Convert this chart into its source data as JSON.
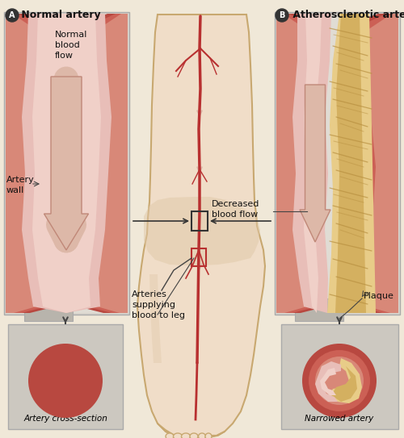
{
  "bg_color": "#f0e8d8",
  "title_a": " Normal artery",
  "title_b": " Atherosclerotic artery",
  "label_normal_flow": "Normal\nblood\nflow",
  "label_artery_wall": "Artery\nwall",
  "label_decreased_flow": "Decreased\nblood flow",
  "label_arteries": "Arteries\nsupplying\nblood to leg",
  "label_plaque": "Plaque",
  "label_cross_section_a": "Artery cross-section",
  "label_narrowed": "Narrowed artery",
  "color_artery_outer": "#b84840",
  "color_artery_mid": "#cc6055",
  "color_artery_inner": "#d88878",
  "color_artery_lumen": "#e8beb8",
  "color_artery_highlight": "#f0d0c8",
  "color_plaque": "#d4b060",
  "color_plaque_light": "#e8cc88",
  "color_plaque_dark": "#b89040",
  "color_skin": "#f0ddc8",
  "color_skin_dark": "#c8a870",
  "color_skin_shadow": "#e0c8a8",
  "color_blood": "#b83030",
  "color_blood_light": "#d05050",
  "color_arrow": "#ddb8a8",
  "color_arrow_edge": "#c08878",
  "color_panel_bg": "#ddd8d0",
  "color_panel_border": "#aaaaaa",
  "color_box_bg": "#ccc8c0"
}
